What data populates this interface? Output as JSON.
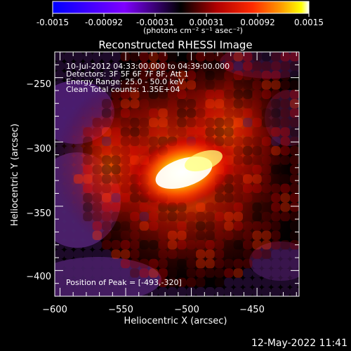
{
  "colorbar": {
    "tick_labels": [
      "-0.0015",
      "-0.00092",
      "-0.00031",
      "0.00031",
      "0.00092",
      "0.0015"
    ],
    "units_label": "(photons cm⁻² s⁻¹ asec⁻²)",
    "range": [
      -0.0015,
      0.0015
    ],
    "colors": {
      "blue": "#0000ff",
      "purple": "#7f00ff",
      "dark_magenta": "#4a0050",
      "dark_red": "#6a0000",
      "red": "#ff1a00",
      "orange": "#ff8a00",
      "yellow": "#ffff00",
      "white": "#ffffff"
    }
  },
  "title": "Reconstructed RHESSI Image",
  "info": {
    "line1": "10-Jul-2012 04:33:00.000 to 04:39:00.000",
    "line2": "Detectors: 3F 5F 6F 7F 8F, Att 1",
    "line3": "Energy Range: 25.0 - 50.0 keV",
    "line4": "Clean    Total counts: 1.35E+04"
  },
  "peak": "Position of Peak = [-493,-320]",
  "footer": {
    "date": "12-May-2022 11:41"
  },
  "chart_data": {
    "type": "heatmap",
    "title": "Reconstructed RHESSI Image",
    "xlabel": "Heliocentric X (arcsec)",
    "ylabel": "Heliocentric Y (arcsec)",
    "xlim": [
      -604,
      -418
    ],
    "ylim": [
      -420,
      -230
    ],
    "x_ticks": [
      -600,
      -550,
      -500,
      -450
    ],
    "y_ticks": [
      -250,
      -300,
      -350,
      -400
    ],
    "x_tick_labels": [
      "−600",
      "−550",
      "−500",
      "−450"
    ],
    "y_tick_labels": [
      "−250",
      "−300",
      "−350",
      "−400"
    ],
    "peak_position": [
      -493,
      -320
    ],
    "value_range": [
      -0.0015,
      0.0015
    ]
  }
}
